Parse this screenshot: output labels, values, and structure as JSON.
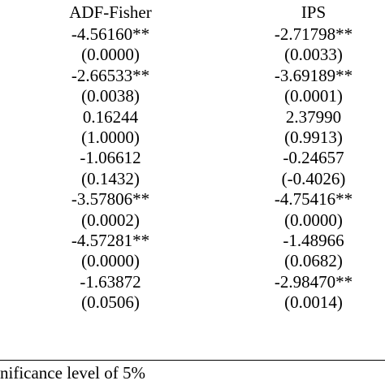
{
  "table": {
    "headers": {
      "adf_fisher": "ADF-Fisher",
      "ips": "IPS"
    },
    "rows": [
      {
        "adf": "-4.56160**",
        "ips": "-2.71798**"
      },
      {
        "adf": "(0.0000)",
        "ips": "(0.0033)"
      },
      {
        "adf": "-2.66533**",
        "ips": "-3.69189**"
      },
      {
        "adf": "(0.0038)",
        "ips": "(0.0001)"
      },
      {
        "adf": "0.16244",
        "ips": "2.37990"
      },
      {
        "adf": "(1.0000)",
        "ips": "(0.9913)"
      },
      {
        "adf": "-1.06612",
        "ips": "-0.24657"
      },
      {
        "adf": "(0.1432)",
        "ips": "(-0.4026)"
      },
      {
        "adf": "-3.57806**",
        "ips": "-4.75416**"
      },
      {
        "adf": "(0.0002)",
        "ips": "(0.0000)"
      },
      {
        "adf": "-4.57281**",
        "ips": "-1.48966"
      },
      {
        "adf": "(0.0000)",
        "ips": "(0.0682)"
      },
      {
        "adf": "-1.63872",
        "ips": "-2.98470**"
      },
      {
        "adf": "(0.0506)",
        "ips": "(0.0014)"
      }
    ]
  },
  "footnote": "nificance level of 5%"
}
